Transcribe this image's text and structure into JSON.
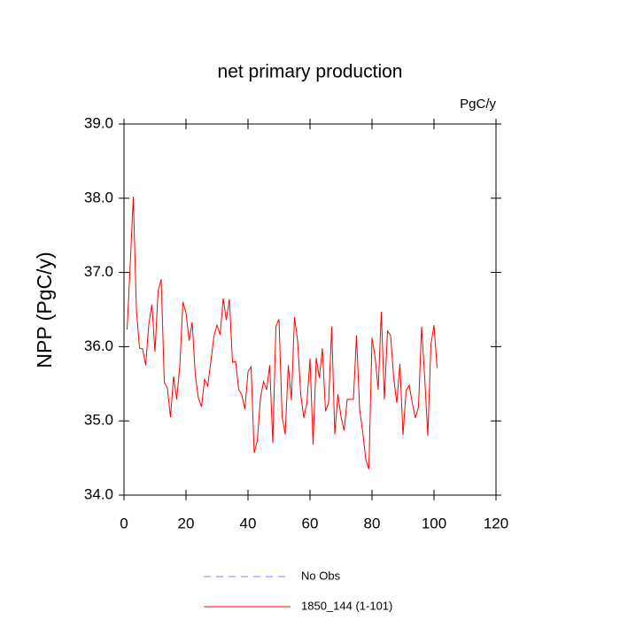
{
  "chart_data": {
    "type": "line",
    "title": "net primary production",
    "units_label": "PgC/y",
    "y_label": "NPP  (PgC/y)",
    "x": [
      1,
      2,
      3,
      4,
      5,
      6,
      7,
      8,
      9,
      10,
      11,
      12,
      13,
      14,
      15,
      16,
      17,
      18,
      19,
      20,
      21,
      22,
      23,
      24,
      25,
      26,
      27,
      28,
      29,
      30,
      31,
      32,
      33,
      34,
      35,
      36,
      37,
      38,
      39,
      40,
      41,
      42,
      43,
      44,
      45,
      46,
      47,
      48,
      49,
      50,
      51,
      52,
      53,
      54,
      55,
      56,
      57,
      58,
      59,
      60,
      61,
      62,
      63,
      64,
      65,
      66,
      67,
      68,
      69,
      70,
      71,
      72,
      73,
      74,
      75,
      76,
      77,
      78,
      79,
      80,
      81,
      82,
      83,
      84,
      85,
      86,
      87,
      88,
      89,
      90,
      91,
      92,
      93,
      94,
      95,
      96,
      97,
      98,
      99,
      100,
      101
    ],
    "series": [
      {
        "name": "No Obs",
        "color": "#8080ff",
        "dashed": true
      },
      {
        "name": "1850_144 (1-101)",
        "color": "#ff0000",
        "dashed": false,
        "values": [
          36.23,
          37.1,
          38.02,
          36.5,
          35.98,
          35.97,
          35.75,
          36.3,
          36.57,
          35.93,
          36.75,
          36.91,
          35.52,
          35.44,
          35.05,
          35.6,
          35.29,
          35.74,
          36.6,
          36.46,
          36.08,
          36.33,
          35.62,
          35.31,
          35.19,
          35.56,
          35.47,
          35.79,
          36.14,
          36.29,
          36.16,
          36.65,
          36.36,
          36.64,
          35.79,
          35.8,
          35.42,
          35.35,
          35.16,
          35.66,
          35.73,
          34.57,
          34.73,
          35.3,
          35.53,
          35.42,
          35.75,
          34.7,
          36.27,
          36.37,
          35.06,
          34.82,
          35.75,
          35.28,
          36.4,
          36.08,
          35.36,
          35.04,
          35.24,
          35.84,
          34.68,
          35.85,
          35.58,
          35.98,
          35.13,
          35.24,
          36.27,
          34.82,
          35.36,
          35.06,
          34.87,
          35.29,
          35.29,
          35.29,
          36.15,
          35.16,
          34.85,
          34.48,
          34.35,
          36.12,
          35.86,
          35.42,
          36.47,
          35.29,
          36.21,
          36.15,
          35.58,
          35.24,
          35.77,
          34.81,
          35.41,
          35.48,
          35.24,
          35.04,
          35.19,
          36.27,
          35.58,
          34.8,
          36.03,
          36.29,
          35.71
        ]
      }
    ],
    "xlim": [
      0,
      120
    ],
    "xticks": [
      0,
      20,
      40,
      60,
      80,
      100,
      120
    ],
    "ylim": [
      34,
      39
    ],
    "yticks": [
      {
        "value": 34,
        "label": "34.0"
      },
      {
        "value": 35,
        "label": "35.0"
      },
      {
        "value": 36,
        "label": "36.0"
      },
      {
        "value": 37,
        "label": "37.0"
      },
      {
        "value": 38,
        "label": "38.0"
      },
      {
        "value": 39,
        "label": "39.0"
      }
    ],
    "grid": false
  }
}
